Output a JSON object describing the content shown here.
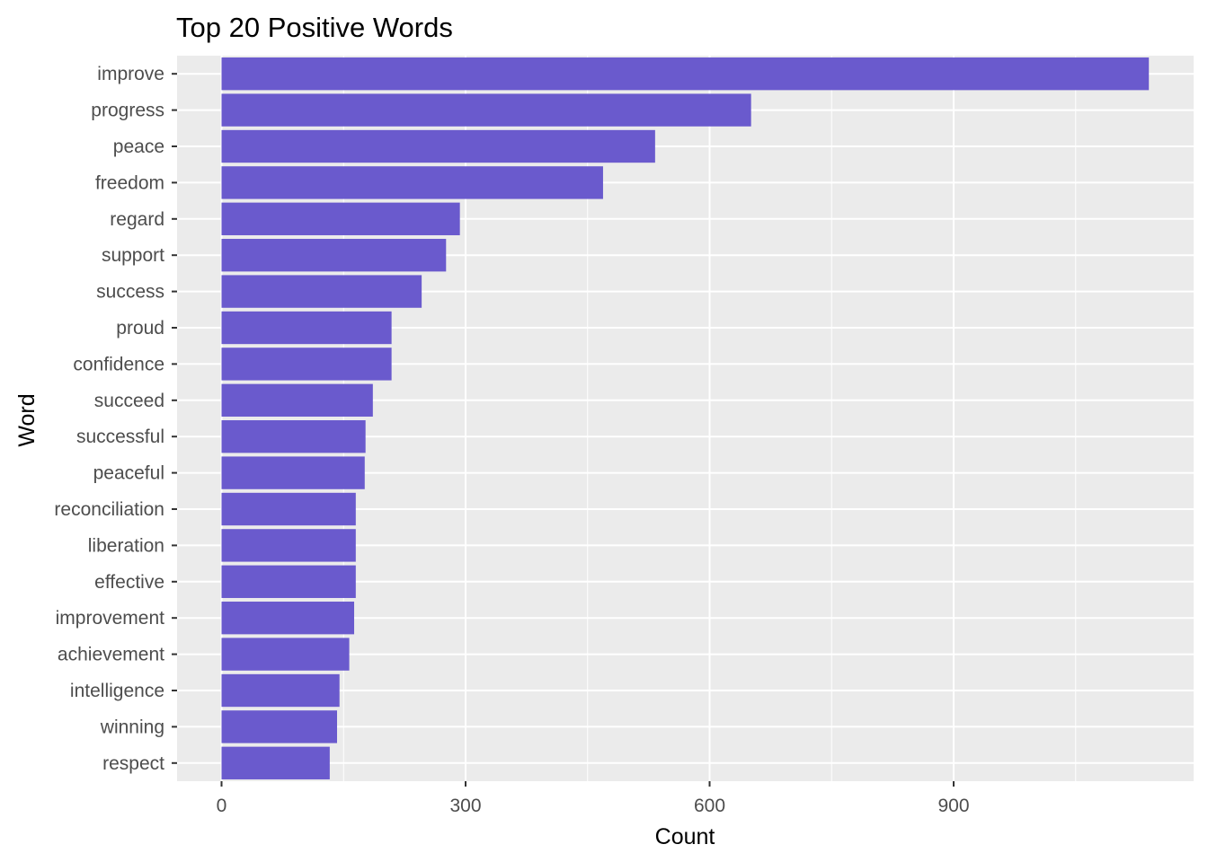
{
  "chart_data": {
    "type": "bar",
    "orientation": "horizontal",
    "title": "Top 20 Positive Words",
    "xlabel": "Count",
    "ylabel": "Word",
    "xlim": [
      0,
      1140
    ],
    "xticks": [
      0,
      300,
      600,
      900
    ],
    "grid": true,
    "bar_color": "#6A5ACD",
    "panel_background": "#EBEBEB",
    "categories": [
      "improve",
      "progress",
      "peace",
      "freedom",
      "regard",
      "support",
      "success",
      "proud",
      "confidence",
      "succeed",
      "successful",
      "peaceful",
      "reconciliation",
      "liberation",
      "effective",
      "improvement",
      "achievement",
      "intelligence",
      "winning",
      "respect"
    ],
    "values": [
      1140,
      651,
      533,
      469,
      293,
      276,
      246,
      209,
      209,
      186,
      177,
      176,
      165,
      165,
      165,
      163,
      157,
      145,
      142,
      133
    ]
  }
}
